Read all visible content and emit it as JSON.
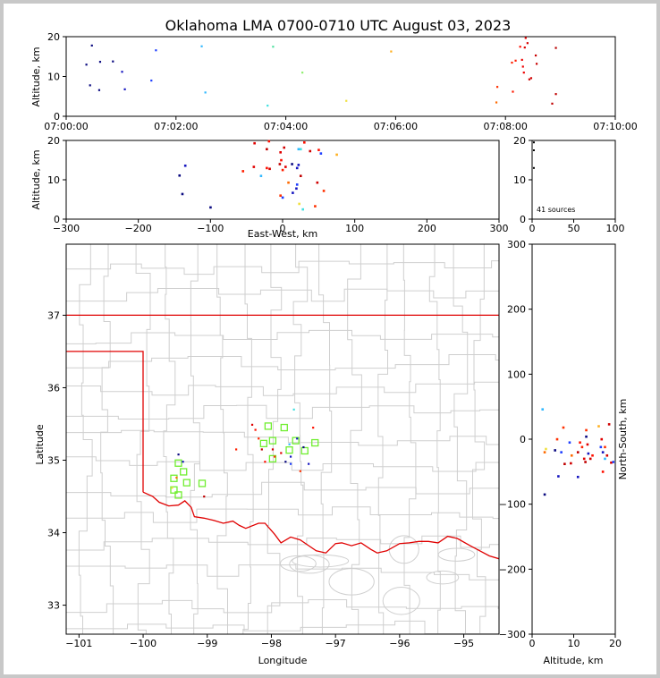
{
  "chart_data": [
    {
      "type": "scatter",
      "panel": "altitude-vs-time",
      "title": "Oklahoma LMA 0700-0710 UTC August 03, 2023",
      "ylabel": "Altitude, km",
      "xlim": [
        "07:00:00",
        "07:10:00"
      ],
      "ylim": [
        0,
        20
      ],
      "xticks": [
        "07:00:00",
        "07:02:00",
        "07:04:00",
        "07:06:00",
        "07:08:00",
        "07:10:00"
      ],
      "yticks": [
        "0",
        "10",
        "20"
      ],
      "points": [
        {
          "t": 22,
          "y": 13,
          "c": "#0a0a80"
        },
        {
          "t": 26,
          "y": 7.8,
          "c": "#0a0a80"
        },
        {
          "t": 28,
          "y": 17.8,
          "c": "#0a0a80"
        },
        {
          "t": 36,
          "y": 6.6,
          "c": "#0a0a80"
        },
        {
          "t": 37,
          "y": 13.7,
          "c": "#0a0a80"
        },
        {
          "t": 51,
          "y": 13.8,
          "c": "#0a0a80"
        },
        {
          "t": 61,
          "y": 11.2,
          "c": "#1515c0"
        },
        {
          "t": 64,
          "y": 6.8,
          "c": "#1515c0"
        },
        {
          "t": 93,
          "y": 9.0,
          "c": "#1f40ff"
        },
        {
          "t": 98,
          "y": 16.6,
          "c": "#1f40ff"
        },
        {
          "t": 148,
          "y": 17.6,
          "c": "#30b8ff"
        },
        {
          "t": 152,
          "y": 6,
          "c": "#30b8ff"
        },
        {
          "t": 220,
          "y": 2.7,
          "c": "#40e0e0"
        },
        {
          "t": 226,
          "y": 17.5,
          "c": "#50e0a0"
        },
        {
          "t": 258,
          "y": 11,
          "c": "#90f070"
        },
        {
          "t": 306,
          "y": 3.9,
          "c": "#f0e040"
        },
        {
          "t": 355,
          "y": 16.3,
          "c": "#ffb020"
        },
        {
          "t": 470,
          "y": 3.5,
          "c": "#ff6a00"
        },
        {
          "t": 471,
          "y": 7.4,
          "c": "#ff3000"
        },
        {
          "t": 487,
          "y": 13.5,
          "c": "#ff2000"
        },
        {
          "t": 488,
          "y": 6.2,
          "c": "#ff1a00"
        },
        {
          "t": 491,
          "y": 14,
          "c": "#ff1800"
        },
        {
          "t": 496,
          "y": 17.5,
          "c": "#ff1000"
        },
        {
          "t": 498,
          "y": 14.2,
          "c": "#ee0000"
        },
        {
          "t": 499,
          "y": 12.5,
          "c": "#ee0000"
        },
        {
          "t": 500,
          "y": 11,
          "c": "#ee0000"
        },
        {
          "t": 501,
          "y": 17.3,
          "c": "#e00000"
        },
        {
          "t": 502,
          "y": 19.7,
          "c": "#e00000"
        },
        {
          "t": 504,
          "y": 18.4,
          "c": "#d80000"
        },
        {
          "t": 506,
          "y": 9.3,
          "c": "#d00000"
        },
        {
          "t": 508,
          "y": 9.6,
          "c": "#d00000"
        },
        {
          "t": 513,
          "y": 15.3,
          "c": "#c80000"
        },
        {
          "t": 514,
          "y": 13.2,
          "c": "#c80000"
        },
        {
          "t": 531,
          "y": 3.2,
          "c": "#c00000"
        },
        {
          "t": 535,
          "y": 5.6,
          "c": "#c00000"
        },
        {
          "t": 535,
          "y": 17.2,
          "c": "#b80000"
        }
      ]
    },
    {
      "type": "scatter",
      "panel": "altitude-vs-east-west",
      "xlabel": "East-West, km",
      "ylabel": "Altitude, km",
      "xlim": [
        -300,
        300
      ],
      "ylim": [
        0,
        20
      ],
      "xticks": [
        "−300",
        "−200",
        "−100",
        "0",
        "100",
        "200",
        "300"
      ],
      "yticks": [
        "0",
        "10",
        "20"
      ],
      "points": [
        {
          "x": -100,
          "y": 3.0,
          "c": "#0a0a80"
        },
        {
          "x": -139,
          "y": 6.4,
          "c": "#0a0a80"
        },
        {
          "x": -143,
          "y": 11.1,
          "c": "#0a0a80"
        },
        {
          "x": -135,
          "y": 13.6,
          "c": "#1515c0"
        },
        {
          "x": -55,
          "y": 12.2,
          "c": "#ff2000"
        },
        {
          "x": -40,
          "y": 13.3,
          "c": "#e00000"
        },
        {
          "x": -39,
          "y": 19.3,
          "c": "#e00000"
        },
        {
          "x": -30,
          "y": 11,
          "c": "#30b8ff"
        },
        {
          "x": -22,
          "y": 13,
          "c": "#ff1000"
        },
        {
          "x": -18,
          "y": 12.8,
          "c": "#d00000"
        },
        {
          "x": -19,
          "y": 19.8,
          "c": "#ff1000"
        },
        {
          "x": -22,
          "y": 17.8,
          "c": "#c00000"
        },
        {
          "x": -4,
          "y": 14,
          "c": "#c00000"
        },
        {
          "x": -3,
          "y": 17,
          "c": "#e00000"
        },
        {
          "x": -2,
          "y": 15,
          "c": "#ff1000"
        },
        {
          "x": 0,
          "y": 12.5,
          "c": "#ff2000"
        },
        {
          "x": 2,
          "y": 18.2,
          "c": "#d00000"
        },
        {
          "x": 4,
          "y": 13.3,
          "c": "#e00000"
        },
        {
          "x": -3,
          "y": 6,
          "c": "#ff3000"
        },
        {
          "x": 0,
          "y": 5.5,
          "c": "#1f40ff"
        },
        {
          "x": 8,
          "y": 9.3,
          "c": "#ff6a00"
        },
        {
          "x": 13,
          "y": 14,
          "c": "#0a0a80"
        },
        {
          "x": 14,
          "y": 6.7,
          "c": "#1515c0"
        },
        {
          "x": 19,
          "y": 7.8,
          "c": "#1515c0"
        },
        {
          "x": 20,
          "y": 8.8,
          "c": "#1f40ff"
        },
        {
          "x": 20,
          "y": 13,
          "c": "#1515c0"
        },
        {
          "x": 22,
          "y": 13.8,
          "c": "#1515c0"
        },
        {
          "x": 22,
          "y": 17.8,
          "c": "#30b8ff"
        },
        {
          "x": 25,
          "y": 17.8,
          "c": "#40e0e0"
        },
        {
          "x": 23,
          "y": 3.9,
          "c": "#f0e040"
        },
        {
          "x": 28,
          "y": 2.5,
          "c": "#40e0e0"
        },
        {
          "x": 25,
          "y": 11,
          "c": "#c00000"
        },
        {
          "x": 30,
          "y": 19.5,
          "c": "#ff1000"
        },
        {
          "x": 38,
          "y": 17.3,
          "c": "#d00000"
        },
        {
          "x": 45,
          "y": 3.3,
          "c": "#ff3000"
        },
        {
          "x": 48,
          "y": 9.3,
          "c": "#d00000"
        },
        {
          "x": 50,
          "y": 17.6,
          "c": "#ff1000"
        },
        {
          "x": 53,
          "y": 16.7,
          "c": "#1f40ff"
        },
        {
          "x": 57,
          "y": 7.2,
          "c": "#ff3000"
        },
        {
          "x": 75,
          "y": 16.4,
          "c": "#ffb020"
        }
      ]
    },
    {
      "type": "bar",
      "panel": "altitude-histogram",
      "xlim": [
        0,
        100
      ],
      "ylim": [
        0,
        20
      ],
      "xticks": [
        "0",
        "50",
        "100"
      ],
      "yticks": [
        "0",
        "10",
        "20"
      ],
      "annotation": "41 sources",
      "points": [
        {
          "x": 0.5,
          "y": 13
        },
        {
          "x": 0.5,
          "y": 17.5
        },
        {
          "x": 0.5,
          "y": 19.5
        }
      ]
    },
    {
      "type": "scatter",
      "panel": "plan-view-map",
      "xlabel": "Longitude",
      "ylabel": "Latitude",
      "xlim": [
        -101.2,
        -94.45
      ],
      "ylim": [
        32.6,
        37.98
      ],
      "xticks": [
        "−101",
        "−100",
        "−99",
        "−98",
        "−97",
        "−96",
        "−95"
      ],
      "yticks": [
        "33",
        "34",
        "35",
        "36",
        "37"
      ],
      "stations": [
        {
          "x": -98.05,
          "y": 35.47
        },
        {
          "x": -97.8,
          "y": 35.45
        },
        {
          "x": -98.12,
          "y": 35.23
        },
        {
          "x": -97.98,
          "y": 35.27
        },
        {
          "x": -97.72,
          "y": 35.14
        },
        {
          "x": -97.62,
          "y": 35.27
        },
        {
          "x": -97.48,
          "y": 35.13
        },
        {
          "x": -97.32,
          "y": 35.24
        },
        {
          "x": -97.98,
          "y": 35.02
        },
        {
          "x": -99.45,
          "y": 34.96
        },
        {
          "x": -99.37,
          "y": 34.84
        },
        {
          "x": -99.52,
          "y": 34.75
        },
        {
          "x": -99.32,
          "y": 34.69
        },
        {
          "x": -99.08,
          "y": 34.68
        },
        {
          "x": -99.52,
          "y": 34.59
        },
        {
          "x": -99.45,
          "y": 34.52
        }
      ],
      "points": [
        {
          "x": -98.3,
          "y": 35.49,
          "c": "#e00000"
        },
        {
          "x": -98.25,
          "y": 35.42,
          "c": "#ff1000"
        },
        {
          "x": -98.55,
          "y": 35.15,
          "c": "#ff2000"
        },
        {
          "x": -98.15,
          "y": 35.15,
          "c": "#c00000"
        },
        {
          "x": -97.98,
          "y": 35.15,
          "c": "#d00000"
        },
        {
          "x": -97.85,
          "y": 35.1,
          "c": "#e00000"
        },
        {
          "x": -98.1,
          "y": 34.98,
          "c": "#ff1000"
        },
        {
          "x": -97.95,
          "y": 35.05,
          "c": "#ff3000"
        },
        {
          "x": -97.7,
          "y": 35.05,
          "c": "#1515c0"
        },
        {
          "x": -97.7,
          "y": 34.95,
          "c": "#1f40ff"
        },
        {
          "x": -97.78,
          "y": 34.98,
          "c": "#0a0a80"
        },
        {
          "x": -97.6,
          "y": 35.3,
          "c": "#1515c0"
        },
        {
          "x": -97.5,
          "y": 35.18,
          "c": "#0a0a80"
        },
        {
          "x": -97.42,
          "y": 34.95,
          "c": "#1515c0"
        },
        {
          "x": -97.55,
          "y": 34.85,
          "c": "#ff3000"
        },
        {
          "x": -97.35,
          "y": 35.45,
          "c": "#ff1000"
        },
        {
          "x": -97.65,
          "y": 35.7,
          "c": "#40e0e0"
        },
        {
          "x": -97.72,
          "y": 35.22,
          "c": "#30b8ff"
        },
        {
          "x": -99.45,
          "y": 35.08,
          "c": "#0a0a80"
        },
        {
          "x": -99.38,
          "y": 34.98,
          "c": "#1515c0"
        },
        {
          "x": -99.05,
          "y": 34.5,
          "c": "#c00000"
        },
        {
          "x": -99.48,
          "y": 34.76,
          "c": "#ff6a00"
        },
        {
          "x": -99.55,
          "y": 34.62,
          "c": "#f0e040"
        },
        {
          "x": -98.2,
          "y": 35.3,
          "c": "#ff2000"
        }
      ]
    },
    {
      "type": "scatter",
      "panel": "north-south-vs-altitude",
      "xlabel": "Altitude, km",
      "ylabel": "North-South, km",
      "xlim": [
        0,
        20
      ],
      "ylim": [
        -300,
        300
      ],
      "xticks": [
        "0",
        "10",
        "20"
      ],
      "yticks": [
        "−300",
        "−200",
        "−100",
        "0",
        "100",
        "200",
        "300"
      ],
      "points": [
        {
          "x": 2.5,
          "y": 46,
          "c": "#30b8ff"
        },
        {
          "x": 3.0,
          "y": -20,
          "c": "#ff6a00"
        },
        {
          "x": 3.3,
          "y": -15,
          "c": "#f0e040"
        },
        {
          "x": 3.0,
          "y": -85,
          "c": "#0a0a80"
        },
        {
          "x": 5.5,
          "y": -17,
          "c": "#0a0a80"
        },
        {
          "x": 6,
          "y": 0,
          "c": "#ff3000"
        },
        {
          "x": 6.3,
          "y": -57,
          "c": "#1515c0"
        },
        {
          "x": 7,
          "y": -20,
          "c": "#1f40ff"
        },
        {
          "x": 7.5,
          "y": 18,
          "c": "#ff3000"
        },
        {
          "x": 7.8,
          "y": -38,
          "c": "#c00000"
        },
        {
          "x": 9,
          "y": -5,
          "c": "#1f40ff"
        },
        {
          "x": 9.3,
          "y": -37,
          "c": "#d00000"
        },
        {
          "x": 9.5,
          "y": -25,
          "c": "#ff6a00"
        },
        {
          "x": 11,
          "y": -58,
          "c": "#1515c0"
        },
        {
          "x": 11,
          "y": -20,
          "c": "#c00000"
        },
        {
          "x": 11.5,
          "y": -5,
          "c": "#ff1000"
        },
        {
          "x": 12,
          "y": -12,
          "c": "#ff2000"
        },
        {
          "x": 12.5,
          "y": -30,
          "c": "#e00000"
        },
        {
          "x": 12.8,
          "y": -35,
          "c": "#c00000"
        },
        {
          "x": 13,
          "y": 4,
          "c": "#0a0a80"
        },
        {
          "x": 13,
          "y": 14,
          "c": "#ff3000"
        },
        {
          "x": 13.3,
          "y": -8,
          "c": "#e00000"
        },
        {
          "x": 13.5,
          "y": -22,
          "c": "#1515c0"
        },
        {
          "x": 14,
          "y": -30,
          "c": "#d00000"
        },
        {
          "x": 14.5,
          "y": -25,
          "c": "#ff1000"
        },
        {
          "x": 16,
          "y": 20,
          "c": "#ffb020"
        },
        {
          "x": 16.5,
          "y": -12,
          "c": "#1f40ff"
        },
        {
          "x": 16.7,
          "y": 0,
          "c": "#e00000"
        },
        {
          "x": 17,
          "y": -50,
          "c": "#ff1000"
        },
        {
          "x": 17,
          "y": -20,
          "c": "#1515c0"
        },
        {
          "x": 17.5,
          "y": -30,
          "c": "#30b8ff"
        },
        {
          "x": 17.5,
          "y": -12,
          "c": "#ff3000"
        },
        {
          "x": 18,
          "y": -25,
          "c": "#d00000"
        },
        {
          "x": 18.5,
          "y": 23,
          "c": "#d00000"
        },
        {
          "x": 19,
          "y": -36,
          "c": "#e00000"
        },
        {
          "x": 19.5,
          "y": -35,
          "c": "#1f40ff"
        }
      ]
    }
  ]
}
